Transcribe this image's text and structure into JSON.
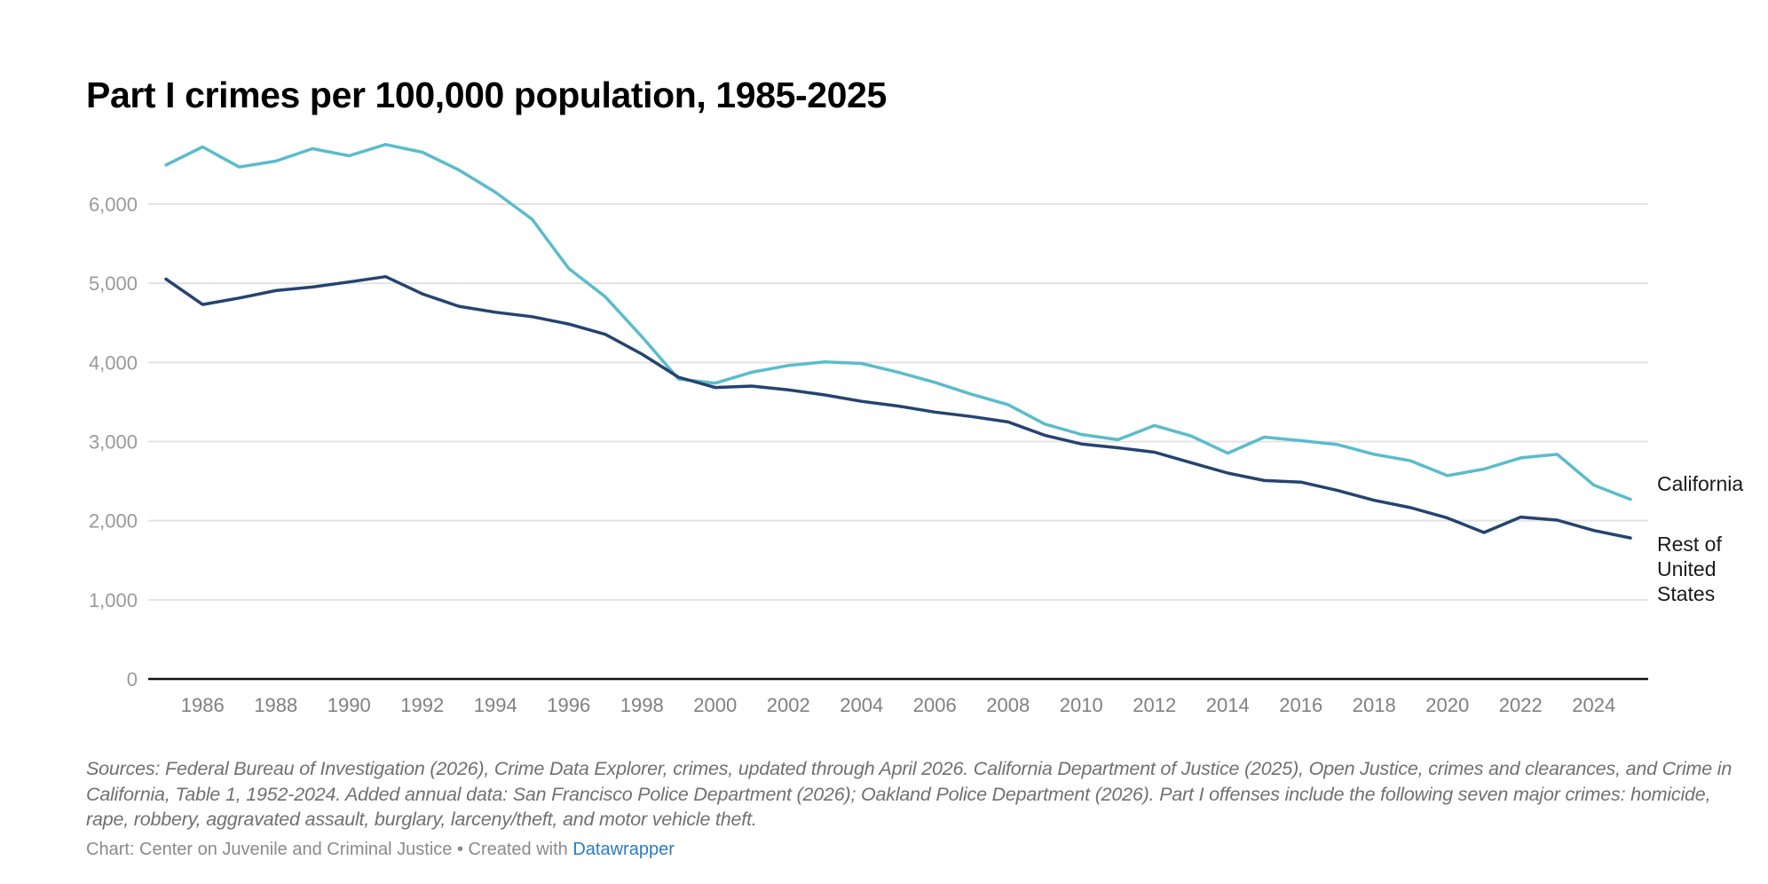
{
  "header": {
    "title": "Part I crimes per 100,000 population, 1985-2025"
  },
  "chart_data": {
    "type": "line",
    "title": "Part I crimes per 100,000 population, 1985-2025",
    "xlabel": "",
    "ylabel": "",
    "x": [
      1985,
      1986,
      1987,
      1988,
      1989,
      1990,
      1991,
      1992,
      1993,
      1994,
      1995,
      1996,
      1997,
      1998,
      1999,
      2000,
      2001,
      2002,
      2003,
      2004,
      2005,
      2006,
      2007,
      2008,
      2009,
      2010,
      2011,
      2012,
      2013,
      2014,
      2015,
      2016,
      2017,
      2018,
      2019,
      2020,
      2021,
      2022,
      2023,
      2024,
      2025
    ],
    "xlim": [
      1985,
      2025
    ],
    "ylim": [
      0,
      6800
    ],
    "yticks": [
      0,
      1000,
      2000,
      3000,
      4000,
      5000,
      6000
    ],
    "ytick_labels": [
      "0",
      "1,000",
      "2,000",
      "3,000",
      "4,000",
      "5,000",
      "6,000"
    ],
    "xticks": [
      1986,
      1988,
      1990,
      1992,
      1994,
      1996,
      1998,
      2000,
      2002,
      2004,
      2006,
      2008,
      2010,
      2012,
      2014,
      2016,
      2018,
      2020,
      2022,
      2024
    ],
    "xtick_labels": [
      "1986",
      "1988",
      "1990",
      "1992",
      "1994",
      "1996",
      "1998",
      "2000",
      "2002",
      "2004",
      "2006",
      "2008",
      "2010",
      "2012",
      "2014",
      "2016",
      "2018",
      "2020",
      "2022",
      "2024"
    ],
    "grid": true,
    "legend": "direct labels at right end of lines",
    "series": [
      {
        "name": "California",
        "label_lines": [
          "California"
        ],
        "color": "#5bbccb",
        "values": [
          6494,
          6723,
          6469,
          6544,
          6701,
          6611,
          6753,
          6656,
          6431,
          6150,
          5809,
          5187,
          4829,
          4324,
          3791,
          3738,
          3876,
          3961,
          4006,
          3987,
          3876,
          3748,
          3598,
          3466,
          3222,
          3090,
          3023,
          3203,
          3071,
          2853,
          3056,
          3011,
          2962,
          2838,
          2756,
          2569,
          2652,
          2793,
          2838,
          2449,
          2270
        ]
      },
      {
        "name": "Rest of United States",
        "label_lines": [
          "Rest of",
          "United",
          "States"
        ],
        "color": "#24446f",
        "values": [
          5053,
          4731,
          4813,
          4907,
          4952,
          5016,
          5083,
          4866,
          4709,
          4634,
          4578,
          4485,
          4355,
          4104,
          3813,
          3683,
          3701,
          3653,
          3589,
          3508,
          3448,
          3372,
          3316,
          3248,
          3079,
          2970,
          2921,
          2865,
          2733,
          2602,
          2508,
          2487,
          2382,
          2258,
          2164,
          2034,
          1850,
          2045,
          2007,
          1876,
          1782
        ]
      }
    ]
  },
  "footer": {
    "notes": "Sources: Federal Bureau of Investigation (2026), Crime Data Explorer, crimes, updated through April 2026. California Department of Justice (2025), Open Justice, crimes and clearances, and Crime in California, Table 1, 1952-2024. Added annual data: San Francisco Police Department (2026); Oakland Police Department (2026). Part I offenses include the following seven major crimes: homicide, rape, robbery, aggravated assault, burglary, larceny/theft, and motor vehicle theft.",
    "byline_prefix": "Chart: Center on Juvenile and Criminal Justice • Created with ",
    "byline_link": "Datawrapper",
    "link_color": "#2b7bbf"
  }
}
